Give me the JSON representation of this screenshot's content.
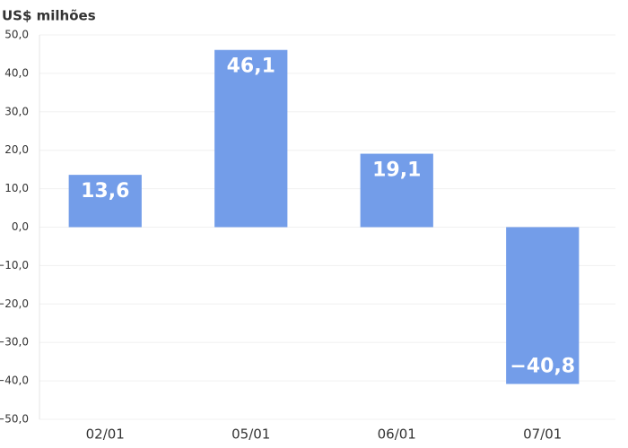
{
  "chart_data": {
    "type": "bar",
    "y_label": "US$ milhões",
    "categories": [
      "02/01",
      "05/01",
      "06/01",
      "07/01"
    ],
    "values": [
      13.6,
      46.1,
      19.1,
      -40.8
    ],
    "value_labels": [
      "13,6",
      "46,1",
      "19,1",
      "−40,8"
    ],
    "color": "#739de9",
    "ylim": [
      -50,
      50
    ],
    "yticks": [
      {
        "value": -50,
        "label": "−50,0"
      },
      {
        "value": -40,
        "label": "−40,0"
      },
      {
        "value": -30,
        "label": "−30,0"
      },
      {
        "value": -20,
        "label": "−20,0"
      },
      {
        "value": -10,
        "label": "−10,0"
      },
      {
        "value": 0,
        "label": "0,0"
      },
      {
        "value": 10,
        "label": "10,0"
      },
      {
        "value": 20,
        "label": "20,0"
      },
      {
        "value": 30,
        "label": "30,0"
      },
      {
        "value": 40,
        "label": "40,0"
      },
      {
        "value": 50,
        "label": "50,0"
      }
    ],
    "grid": true
  }
}
